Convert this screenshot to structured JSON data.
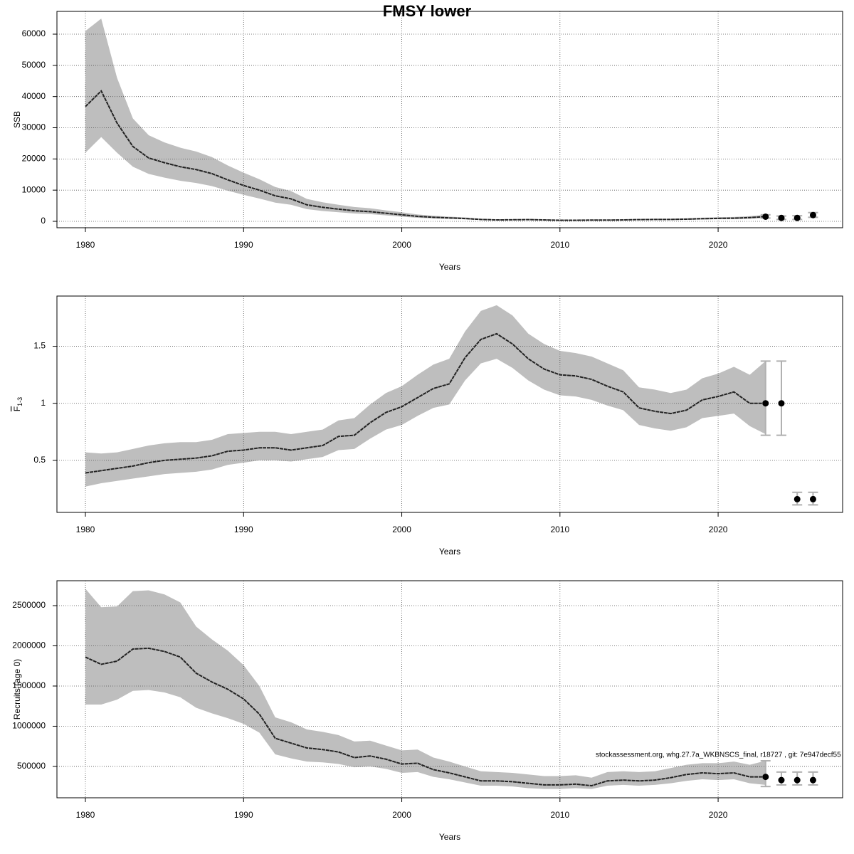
{
  "title": "FMSY lower",
  "note": "stockassessment.org, whg.27.7a_WKBNSCS_final, r18727 , git: 7e947decf55",
  "chart_data": [
    {
      "type": "line",
      "xlabel": "Years",
      "ylabel": "SSB",
      "x": [
        1980,
        1981,
        1982,
        1983,
        1984,
        1985,
        1986,
        1987,
        1988,
        1989,
        1990,
        1991,
        1992,
        1993,
        1994,
        1995,
        1996,
        1997,
        1998,
        1999,
        2000,
        2001,
        2002,
        2003,
        2004,
        2005,
        2006,
        2007,
        2008,
        2009,
        2010,
        2011,
        2012,
        2013,
        2014,
        2015,
        2016,
        2017,
        2018,
        2019,
        2020,
        2021,
        2022,
        2023
      ],
      "series": [
        {
          "color": "#222222",
          "band_color": "#bebebe",
          "values": [
            36800,
            41800,
            31500,
            24000,
            20300,
            18800,
            17500,
            16600,
            15300,
            13300,
            11500,
            10000,
            8200,
            7200,
            5300,
            4500,
            3900,
            3400,
            3100,
            2600,
            2100,
            1600,
            1300,
            1100,
            900,
            600,
            450,
            500,
            550,
            450,
            350,
            350,
            400,
            400,
            450,
            550,
            600,
            600,
            700,
            850,
            950,
            1000,
            1200,
            1500
          ],
          "lower": [
            22000,
            27000,
            22000,
            17500,
            15200,
            14000,
            13000,
            12300,
            11300,
            9800,
            8500,
            7300,
            6000,
            5300,
            3900,
            3300,
            2900,
            2500,
            2300,
            1900,
            1500,
            1150,
            950,
            800,
            650,
            430,
            320,
            360,
            400,
            320,
            250,
            250,
            290,
            290,
            320,
            400,
            430,
            430,
            500,
            610,
            680,
            720,
            860,
            1050
          ],
          "upper": [
            61000,
            65000,
            46000,
            33000,
            27600,
            25300,
            23600,
            22400,
            20600,
            17900,
            15600,
            13500,
            11000,
            9700,
            7200,
            6100,
            5300,
            4600,
            4200,
            3500,
            2900,
            2200,
            1800,
            1500,
            1250,
            840,
            630,
            690,
            760,
            630,
            490,
            490,
            560,
            560,
            630,
            760,
            830,
            830,
            970,
            1180,
            1320,
            1390,
            1670,
            2100
          ]
        }
      ],
      "projection": {
        "color": "#000000",
        "bar_color": "#b0b0b0",
        "x": [
          2023,
          2024,
          2025,
          2026
        ],
        "values": [
          1500,
          1100,
          1100,
          2000
        ],
        "lower": [
          1050,
          600,
          600,
          1300
        ],
        "upper": [
          2100,
          1700,
          1800,
          2800
        ]
      },
      "xlim": [
        1978.2,
        2027.87
      ],
      "ylim": [
        -2050,
        67300
      ],
      "xticks": [
        1980,
        1990,
        2000,
        2010,
        2020
      ],
      "yticks": [
        0,
        10000,
        20000,
        30000,
        40000,
        50000,
        60000
      ],
      "grid": true
    },
    {
      "type": "line",
      "xlabel": "Years",
      "ylabel": "F",
      "ylabel_subscript": "1-3",
      "x": [
        1980,
        1981,
        1982,
        1983,
        1984,
        1985,
        1986,
        1987,
        1988,
        1989,
        1990,
        1991,
        1992,
        1993,
        1994,
        1995,
        1996,
        1997,
        1998,
        1999,
        2000,
        2001,
        2002,
        2003,
        2004,
        2005,
        2006,
        2007,
        2008,
        2009,
        2010,
        2011,
        2012,
        2013,
        2014,
        2015,
        2016,
        2017,
        2018,
        2019,
        2020,
        2021,
        2022,
        2023
      ],
      "series": [
        {
          "color": "#222222",
          "band_color": "#bebebe",
          "values": [
            0.39,
            0.41,
            0.43,
            0.45,
            0.48,
            0.5,
            0.51,
            0.52,
            0.54,
            0.58,
            0.59,
            0.61,
            0.61,
            0.59,
            0.61,
            0.63,
            0.71,
            0.72,
            0.83,
            0.92,
            0.97,
            1.05,
            1.13,
            1.17,
            1.4,
            1.56,
            1.61,
            1.52,
            1.39,
            1.3,
            1.25,
            1.24,
            1.21,
            1.15,
            1.1,
            0.96,
            0.93,
            0.91,
            0.94,
            1.03,
            1.06,
            1.1,
            1.0,
            1.0
          ],
          "lower": [
            0.27,
            0.3,
            0.32,
            0.34,
            0.36,
            0.38,
            0.39,
            0.4,
            0.42,
            0.46,
            0.48,
            0.5,
            0.5,
            0.49,
            0.51,
            0.53,
            0.59,
            0.6,
            0.69,
            0.77,
            0.81,
            0.89,
            0.96,
            0.99,
            1.2,
            1.35,
            1.39,
            1.31,
            1.2,
            1.12,
            1.07,
            1.06,
            1.03,
            0.98,
            0.94,
            0.81,
            0.78,
            0.76,
            0.79,
            0.87,
            0.89,
            0.91,
            0.8,
            0.73
          ],
          "upper": [
            0.57,
            0.56,
            0.57,
            0.6,
            0.63,
            0.65,
            0.66,
            0.66,
            0.68,
            0.73,
            0.74,
            0.75,
            0.75,
            0.73,
            0.75,
            0.77,
            0.85,
            0.87,
            0.99,
            1.09,
            1.15,
            1.25,
            1.34,
            1.39,
            1.63,
            1.81,
            1.86,
            1.77,
            1.61,
            1.52,
            1.46,
            1.44,
            1.41,
            1.35,
            1.29,
            1.14,
            1.12,
            1.09,
            1.12,
            1.22,
            1.26,
            1.32,
            1.25,
            1.37
          ]
        }
      ],
      "projection": {
        "color": "#000000",
        "bar_color": "#b0b0b0",
        "x": [
          2023,
          2024,
          2025,
          2026
        ],
        "values": [
          1.0,
          1.0,
          0.16,
          0.16
        ],
        "lower": [
          0.72,
          0.72,
          0.11,
          0.11
        ],
        "upper": [
          1.37,
          1.37,
          0.22,
          0.22
        ]
      },
      "xlim": [
        1978.2,
        2027.87
      ],
      "ylim": [
        0.044,
        1.94
      ],
      "xticks": [
        1980,
        1990,
        2000,
        2010,
        2020
      ],
      "yticks": [
        0.5,
        1.0,
        1.5
      ],
      "grid": true
    },
    {
      "type": "line",
      "xlabel": "Years",
      "ylabel": "Recruits (age 0)",
      "x": [
        1980,
        1981,
        1982,
        1983,
        1984,
        1985,
        1986,
        1987,
        1988,
        1989,
        1990,
        1991,
        1992,
        1993,
        1994,
        1995,
        1996,
        1997,
        1998,
        1999,
        2000,
        2001,
        2002,
        2003,
        2004,
        2005,
        2006,
        2007,
        2008,
        2009,
        2010,
        2011,
        2012,
        2013,
        2014,
        2015,
        2016,
        2017,
        2018,
        2019,
        2020,
        2021,
        2022,
        2023
      ],
      "series": [
        {
          "color": "#222222",
          "band_color": "#bebebe",
          "values": [
            1860000,
            1770000,
            1810000,
            1960000,
            1970000,
            1930000,
            1860000,
            1660000,
            1550000,
            1460000,
            1340000,
            1150000,
            850000,
            790000,
            730000,
            710000,
            680000,
            610000,
            630000,
            590000,
            530000,
            540000,
            460000,
            420000,
            370000,
            320000,
            320000,
            310000,
            290000,
            270000,
            270000,
            280000,
            260000,
            320000,
            330000,
            320000,
            330000,
            360000,
            400000,
            420000,
            410000,
            420000,
            370000,
            370000
          ],
          "lower": [
            1270000,
            1270000,
            1330000,
            1440000,
            1450000,
            1420000,
            1360000,
            1230000,
            1160000,
            1100000,
            1030000,
            920000,
            650000,
            600000,
            560000,
            550000,
            530000,
            490000,
            500000,
            470000,
            420000,
            430000,
            370000,
            340000,
            300000,
            260000,
            260000,
            250000,
            230000,
            220000,
            220000,
            230000,
            220000,
            260000,
            270000,
            260000,
            270000,
            290000,
            320000,
            340000,
            330000,
            340000,
            290000,
            270000
          ],
          "upper": [
            2710000,
            2480000,
            2490000,
            2680000,
            2690000,
            2640000,
            2540000,
            2240000,
            2080000,
            1940000,
            1760000,
            1500000,
            1110000,
            1050000,
            960000,
            930000,
            890000,
            810000,
            820000,
            760000,
            700000,
            710000,
            610000,
            560000,
            500000,
            440000,
            430000,
            420000,
            400000,
            380000,
            380000,
            390000,
            360000,
            430000,
            440000,
            430000,
            440000,
            480000,
            520000,
            540000,
            540000,
            560000,
            520000,
            570000
          ]
        }
      ],
      "projection": {
        "color": "#000000",
        "bar_color": "#b0b0b0",
        "x": [
          2023,
          2024,
          2025,
          2026
        ],
        "values": [
          370000,
          330000,
          330000,
          330000
        ],
        "lower": [
          250000,
          270000,
          270000,
          270000
        ],
        "upper": [
          570000,
          430000,
          430000,
          430000
        ]
      },
      "xlim": [
        1978.2,
        2027.87
      ],
      "ylim": [
        110000,
        2810000
      ],
      "xticks": [
        1980,
        1990,
        2000,
        2010,
        2020
      ],
      "yticks": [
        500000,
        1000000,
        1500000,
        2000000,
        2500000
      ],
      "grid": true
    }
  ]
}
